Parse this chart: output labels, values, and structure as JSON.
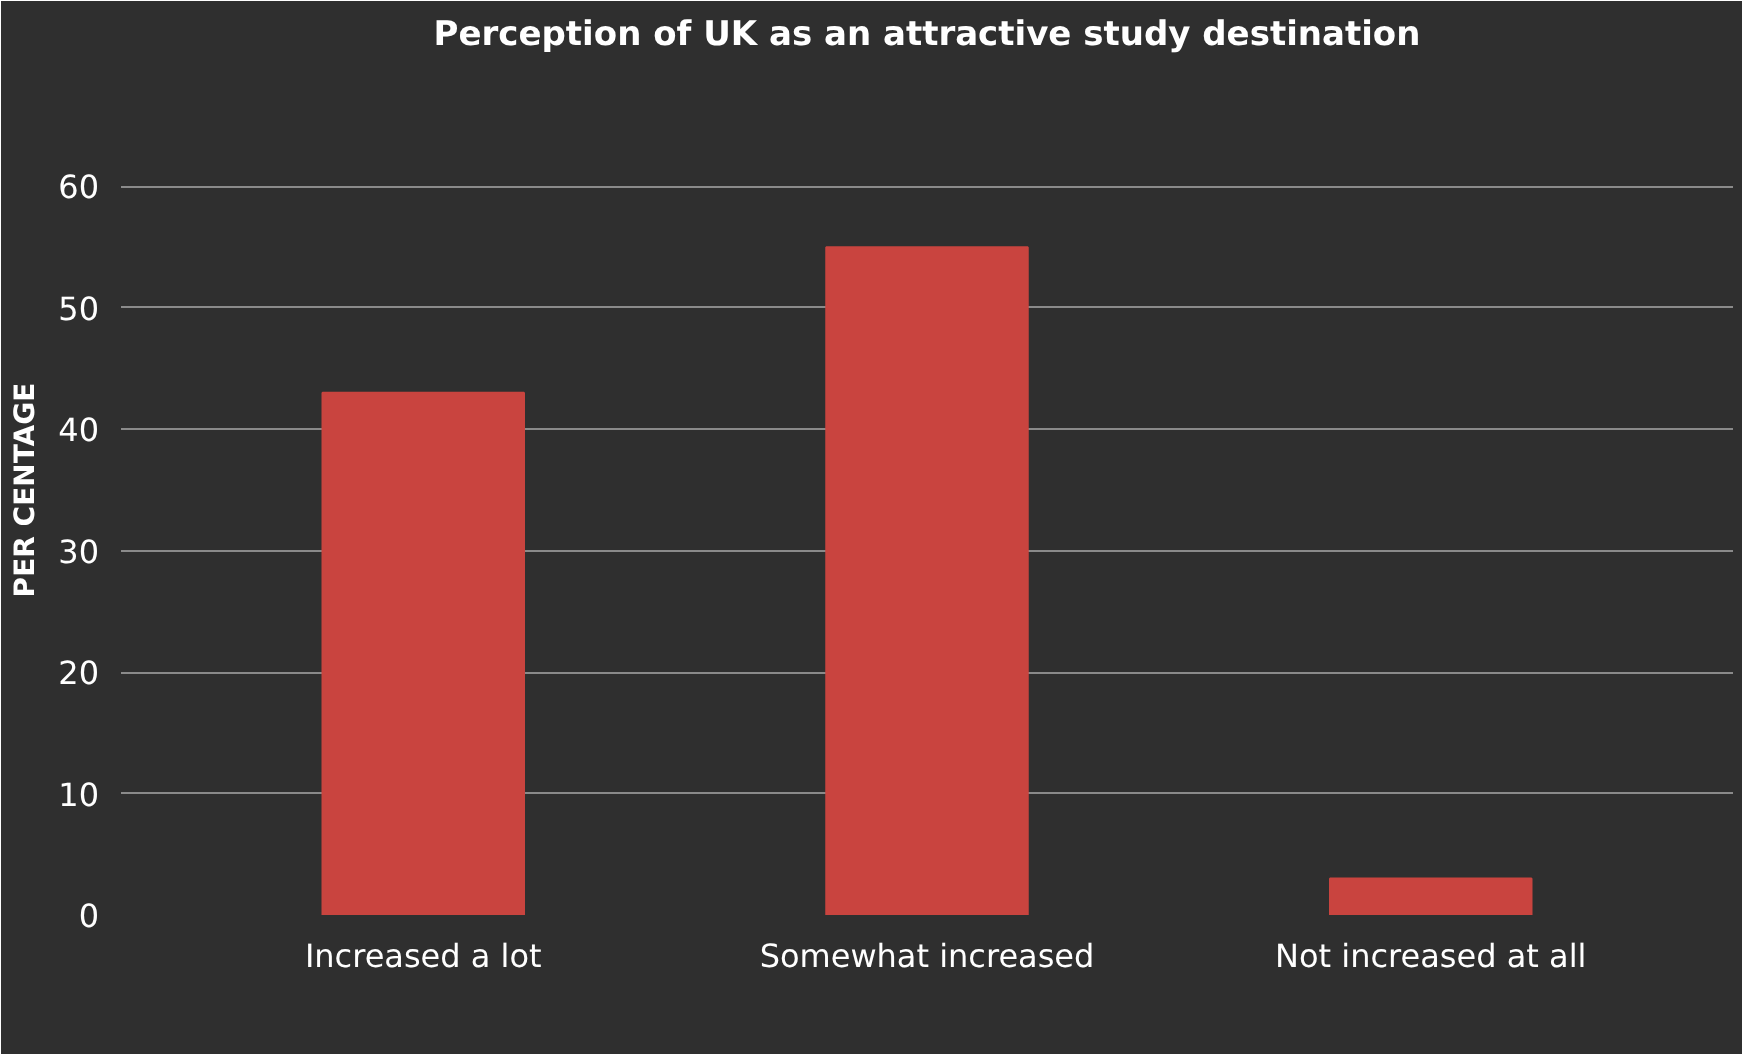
{
  "chart_data": {
    "type": "bar",
    "title": "Perception of UK as an attractive study destination",
    "ylabel": "PER CENTAGE",
    "categories": [
      "Increased a lot",
      "Somewhat increased",
      "Not increased at all"
    ],
    "values": [
      43,
      55,
      3
    ],
    "color": "#c9443f",
    "ylim": [
      0,
      70
    ],
    "yticks": [
      0,
      10,
      20,
      30,
      40,
      50,
      60,
      {
        "value": 70,
        "label": null
      }
    ],
    "grid": "y"
  }
}
